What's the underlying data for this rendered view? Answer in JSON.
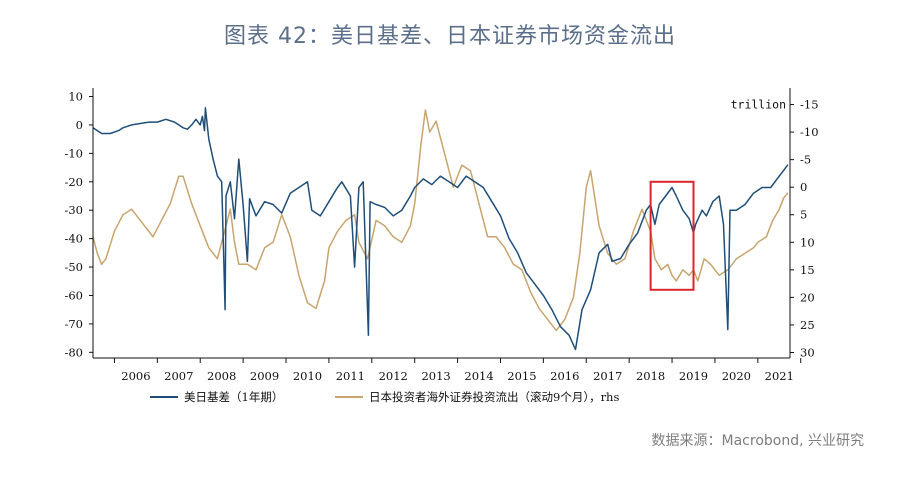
{
  "title": "图表 42：美日基差、日本证券市场资金流出",
  "source": "数据来源：Macrobond, 兴业研究",
  "colors": {
    "basis": "#1f4e79",
    "outflow": "#c8a46e",
    "highlight": "#d9262b",
    "axis": "#111111"
  },
  "chart_data": {
    "type": "line",
    "title": "图表 42：美日基差、日本证券市场资金流出",
    "x_range": [
      2005.5,
      2021.75
    ],
    "x_tick_labels": [
      "2006",
      "2007",
      "2008",
      "2009",
      "2010",
      "2011",
      "2012",
      "2013",
      "2014",
      "2015",
      "2016",
      "2017",
      "2018",
      "2019",
      "2020",
      "2021"
    ],
    "y_left": {
      "range": [
        -82,
        13
      ],
      "ticks": [
        10,
        0,
        -10,
        -20,
        -30,
        -40,
        -50,
        -60,
        -70,
        -80
      ]
    },
    "y_right": {
      "range": [
        31,
        -18
      ],
      "inverted": true,
      "unit_label": "trillion",
      "ticks": [
        -15,
        -10,
        -5,
        0,
        5,
        10,
        15,
        20,
        25,
        30
      ]
    },
    "highlight_box": {
      "x_range": [
        2018.5,
        2019.5
      ],
      "y_range_left": [
        -58,
        -20
      ]
    },
    "legend": [
      "美日基差（1年期）",
      "日本投资者海外证券投资流出（滚动9个月），rhs"
    ],
    "series": [
      {
        "name": "美日基差（1年期）",
        "axis": "left",
        "points": [
          [
            2005.5,
            -1
          ],
          [
            2005.7,
            -3
          ],
          [
            2005.9,
            -3
          ],
          [
            2006.1,
            -2
          ],
          [
            2006.2,
            -1
          ],
          [
            2006.4,
            0
          ],
          [
            2006.6,
            0.5
          ],
          [
            2006.8,
            1
          ],
          [
            2007.0,
            1
          ],
          [
            2007.2,
            2
          ],
          [
            2007.4,
            1
          ],
          [
            2007.5,
            0
          ],
          [
            2007.6,
            -1
          ],
          [
            2007.7,
            -1.5
          ],
          [
            2007.8,
            0
          ],
          [
            2007.9,
            2
          ],
          [
            2008.0,
            0
          ],
          [
            2008.05,
            3
          ],
          [
            2008.1,
            -2
          ],
          [
            2008.12,
            6
          ],
          [
            2008.2,
            -5
          ],
          [
            2008.3,
            -12
          ],
          [
            2008.4,
            -18
          ],
          [
            2008.5,
            -20
          ],
          [
            2008.58,
            -65
          ],
          [
            2008.6,
            -25
          ],
          [
            2008.7,
            -20
          ],
          [
            2008.8,
            -33
          ],
          [
            2008.9,
            -12
          ],
          [
            2009.0,
            -28
          ],
          [
            2009.1,
            -48
          ],
          [
            2009.15,
            -26
          ],
          [
            2009.3,
            -32
          ],
          [
            2009.5,
            -27
          ],
          [
            2009.7,
            -28
          ],
          [
            2009.9,
            -31
          ],
          [
            2010.1,
            -24
          ],
          [
            2010.3,
            -22
          ],
          [
            2010.5,
            -20
          ],
          [
            2010.6,
            -30
          ],
          [
            2010.8,
            -32
          ],
          [
            2011.0,
            -27
          ],
          [
            2011.2,
            -22
          ],
          [
            2011.3,
            -20
          ],
          [
            2011.5,
            -25
          ],
          [
            2011.6,
            -50
          ],
          [
            2011.7,
            -22
          ],
          [
            2011.8,
            -20
          ],
          [
            2011.92,
            -74
          ],
          [
            2011.96,
            -27
          ],
          [
            2012.1,
            -28
          ],
          [
            2012.3,
            -29
          ],
          [
            2012.5,
            -32
          ],
          [
            2012.7,
            -30
          ],
          [
            2012.9,
            -25
          ],
          [
            2013.0,
            -22
          ],
          [
            2013.2,
            -19
          ],
          [
            2013.4,
            -21
          ],
          [
            2013.6,
            -18
          ],
          [
            2013.8,
            -20
          ],
          [
            2014.0,
            -22
          ],
          [
            2014.2,
            -18
          ],
          [
            2014.4,
            -20
          ],
          [
            2014.6,
            -22
          ],
          [
            2014.8,
            -27
          ],
          [
            2015.0,
            -32
          ],
          [
            2015.2,
            -40
          ],
          [
            2015.4,
            -45
          ],
          [
            2015.6,
            -52
          ],
          [
            2015.8,
            -56
          ],
          [
            2016.0,
            -60
          ],
          [
            2016.2,
            -65
          ],
          [
            2016.4,
            -71
          ],
          [
            2016.6,
            -74
          ],
          [
            2016.75,
            -79
          ],
          [
            2016.9,
            -65
          ],
          [
            2017.1,
            -58
          ],
          [
            2017.3,
            -45
          ],
          [
            2017.5,
            -42
          ],
          [
            2017.6,
            -48
          ],
          [
            2017.8,
            -47
          ],
          [
            2018.0,
            -42
          ],
          [
            2018.2,
            -38
          ],
          [
            2018.4,
            -30
          ],
          [
            2018.5,
            -28
          ],
          [
            2018.6,
            -35
          ],
          [
            2018.7,
            -28
          ],
          [
            2018.85,
            -25
          ],
          [
            2019.0,
            -22
          ],
          [
            2019.1,
            -25
          ],
          [
            2019.25,
            -30
          ],
          [
            2019.4,
            -33
          ],
          [
            2019.5,
            -38
          ],
          [
            2019.55,
            -35
          ],
          [
            2019.7,
            -30
          ],
          [
            2019.8,
            -32
          ],
          [
            2019.95,
            -27
          ],
          [
            2020.1,
            -25
          ],
          [
            2020.2,
            -35
          ],
          [
            2020.3,
            -72
          ],
          [
            2020.35,
            -30
          ],
          [
            2020.5,
            -30
          ],
          [
            2020.7,
            -28
          ],
          [
            2020.9,
            -24
          ],
          [
            2021.1,
            -22
          ],
          [
            2021.3,
            -22
          ],
          [
            2021.45,
            -19
          ],
          [
            2021.6,
            -16
          ],
          [
            2021.7,
            -14
          ]
        ]
      },
      {
        "name": "日本投资者海外证券投资流出（滚动9个月），rhs",
        "axis": "right",
        "points": [
          [
            2005.5,
            9
          ],
          [
            2005.6,
            12
          ],
          [
            2005.7,
            14
          ],
          [
            2005.8,
            13
          ],
          [
            2006.0,
            8
          ],
          [
            2006.2,
            5
          ],
          [
            2006.4,
            4
          ],
          [
            2006.5,
            5
          ],
          [
            2006.7,
            7
          ],
          [
            2006.9,
            9
          ],
          [
            2007.1,
            6
          ],
          [
            2007.3,
            3
          ],
          [
            2007.5,
            -2
          ],
          [
            2007.6,
            -2
          ],
          [
            2007.8,
            3
          ],
          [
            2008.0,
            7
          ],
          [
            2008.2,
            11
          ],
          [
            2008.4,
            13
          ],
          [
            2008.6,
            7
          ],
          [
            2008.7,
            4
          ],
          [
            2008.8,
            10
          ],
          [
            2008.9,
            14
          ],
          [
            2009.1,
            14
          ],
          [
            2009.3,
            15
          ],
          [
            2009.5,
            11
          ],
          [
            2009.7,
            10
          ],
          [
            2009.9,
            5
          ],
          [
            2010.1,
            9
          ],
          [
            2010.3,
            16
          ],
          [
            2010.5,
            21
          ],
          [
            2010.7,
            22
          ],
          [
            2010.9,
            17
          ],
          [
            2011.0,
            11
          ],
          [
            2011.2,
            8
          ],
          [
            2011.4,
            6
          ],
          [
            2011.6,
            5
          ],
          [
            2011.7,
            10
          ],
          [
            2011.9,
            13
          ],
          [
            2012.1,
            6
          ],
          [
            2012.3,
            7
          ],
          [
            2012.5,
            9
          ],
          [
            2012.7,
            10
          ],
          [
            2012.9,
            7
          ],
          [
            2013.0,
            3
          ],
          [
            2013.15,
            -8
          ],
          [
            2013.25,
            -14
          ],
          [
            2013.35,
            -10
          ],
          [
            2013.5,
            -12
          ],
          [
            2013.7,
            -6
          ],
          [
            2013.9,
            0
          ],
          [
            2014.1,
            -4
          ],
          [
            2014.3,
            -3
          ],
          [
            2014.5,
            3
          ],
          [
            2014.7,
            9
          ],
          [
            2014.9,
            9
          ],
          [
            2015.1,
            11
          ],
          [
            2015.3,
            14
          ],
          [
            2015.5,
            15
          ],
          [
            2015.7,
            19
          ],
          [
            2015.9,
            22
          ],
          [
            2016.1,
            24
          ],
          [
            2016.3,
            26
          ],
          [
            2016.5,
            24
          ],
          [
            2016.7,
            20
          ],
          [
            2016.85,
            12
          ],
          [
            2017.0,
            0
          ],
          [
            2017.1,
            -3
          ],
          [
            2017.3,
            7
          ],
          [
            2017.5,
            12
          ],
          [
            2017.7,
            14
          ],
          [
            2017.9,
            13
          ],
          [
            2018.1,
            8
          ],
          [
            2018.3,
            4
          ],
          [
            2018.5,
            8
          ],
          [
            2018.6,
            13
          ],
          [
            2018.75,
            15
          ],
          [
            2018.9,
            14
          ],
          [
            2019.0,
            16
          ],
          [
            2019.1,
            17
          ],
          [
            2019.25,
            15
          ],
          [
            2019.4,
            16
          ],
          [
            2019.5,
            15
          ],
          [
            2019.6,
            17
          ],
          [
            2019.75,
            13
          ],
          [
            2019.9,
            14
          ],
          [
            2020.1,
            16
          ],
          [
            2020.3,
            15
          ],
          [
            2020.5,
            13
          ],
          [
            2020.7,
            12
          ],
          [
            2020.9,
            11
          ],
          [
            2021.0,
            10
          ],
          [
            2021.2,
            9
          ],
          [
            2021.35,
            6
          ],
          [
            2021.5,
            4
          ],
          [
            2021.6,
            2
          ],
          [
            2021.7,
            1
          ]
        ]
      }
    ]
  }
}
